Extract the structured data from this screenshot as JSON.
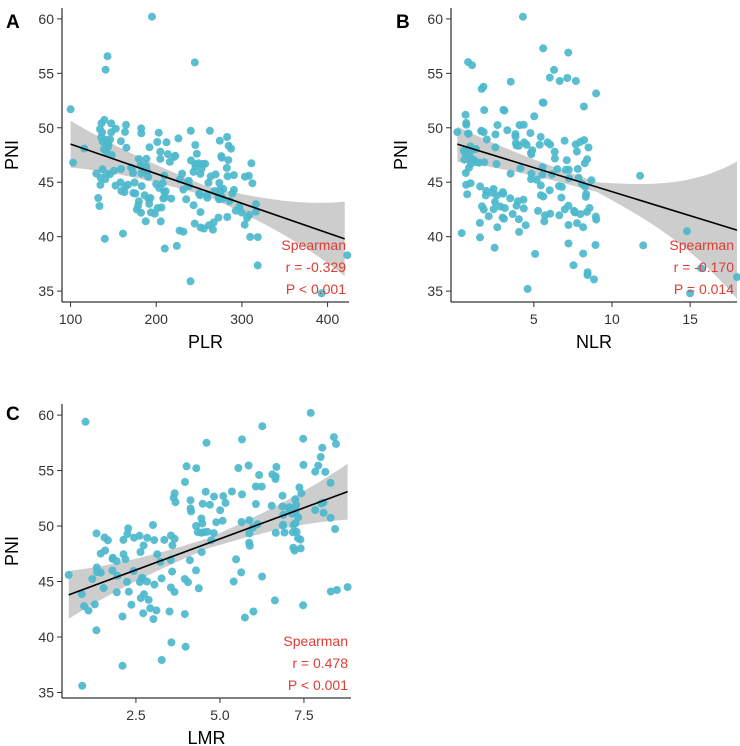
{
  "chart_data": [
    {
      "panel": "A",
      "type": "scatter",
      "xlabel": "PLR",
      "ylabel": "PNI",
      "xlim": [
        90,
        425
      ],
      "ylim": [
        34,
        61
      ],
      "xticks": [
        100,
        200,
        300,
        400
      ],
      "yticks": [
        35,
        40,
        45,
        50,
        55,
        60
      ],
      "point_color": "#4db8cc",
      "fit": {
        "x0": 100,
        "y0": 48.5,
        "x1": 420,
        "y1": 39.8,
        "ci_left": 1.2,
        "ci_mid": 0.45,
        "ci_right": 1.9
      },
      "stats": {
        "method": "Spearman",
        "r_text": "r = -0.329",
        "p_text": "P < 0.001",
        "color": "#e03c31"
      },
      "seed": 11,
      "outliers": [
        [
          195,
          60.2
        ],
        [
          245,
          56
        ],
        [
          100,
          51.7
        ],
        [
          103,
          46.8
        ],
        [
          393,
          34.8
        ],
        [
          423,
          38.3
        ],
        [
          240,
          35.9
        ],
        [
          140,
          39.8
        ],
        [
          116,
          48.1
        ]
      ],
      "clusters": [
        {
          "n": 170,
          "x": [
            130,
            320
          ],
          "ymean_at": [
            [
              100,
              48.5
            ],
            [
              420,
              39.8
            ]
          ],
          "ysd": 2.6
        }
      ]
    },
    {
      "panel": "B",
      "type": "scatter",
      "xlabel": "NLR",
      "ylabel": "PNI",
      "xlim": [
        -0.3,
        18
      ],
      "ylim": [
        34,
        61
      ],
      "xticks": [
        5,
        10,
        15
      ],
      "yticks": [
        35,
        40,
        45,
        50,
        55,
        60
      ],
      "point_color": "#4db8cc",
      "fit": {
        "x0": 0.1,
        "y0": 48.5,
        "x1": 18,
        "y1": 40.6,
        "ci_left": 0.9,
        "ci_mid": 0.45,
        "ci_right": 3.5
      },
      "stats": {
        "method": "Spearman",
        "r_text": "r = -0.170",
        "p_text": "P = 0.014",
        "color": "#e03c31"
      },
      "seed": 23,
      "outliers": [
        [
          4.3,
          60.2
        ],
        [
          5.6,
          57.3
        ],
        [
          7.2,
          56.9
        ],
        [
          4.6,
          35.2
        ],
        [
          11.8,
          45.6
        ],
        [
          12,
          39.2
        ],
        [
          14.8,
          40.5
        ],
        [
          15,
          34.8
        ],
        [
          15.7,
          37.1
        ],
        [
          18,
          36.3
        ],
        [
          0.1,
          49.6
        ]
      ],
      "clusters": [
        {
          "n": 160,
          "x": [
            0.3,
            9
          ],
          "ymean_at": [
            [
              0,
              48.5
            ],
            [
              18,
              40.6
            ]
          ],
          "ysd": 3.8
        }
      ]
    },
    {
      "panel": "C",
      "type": "scatter",
      "xlabel": "LMR",
      "ylabel": "PNI",
      "xlim": [
        0.3,
        8.9
      ],
      "ylim": [
        34.5,
        61
      ],
      "xticks": [
        2.5,
        5.0,
        7.5
      ],
      "xtick_labels": [
        "2.5",
        "5.0",
        "7.5"
      ],
      "yticks": [
        35,
        40,
        45,
        50,
        55,
        60
      ],
      "point_color": "#4db8cc",
      "fit": {
        "x0": 0.5,
        "y0": 43.8,
        "x1": 8.8,
        "y1": 53.1,
        "ci_left": 1.2,
        "ci_mid": 0.45,
        "ci_right": 1.4
      },
      "stats": {
        "method": "Spearman",
        "r_text": "r = 0.478",
        "p_text": "P < 0.001",
        "color": "#e03c31"
      },
      "seed": 37,
      "outliers": [
        [
          1.0,
          59.4
        ],
        [
          0.9,
          35.6
        ],
        [
          7.7,
          60.2
        ],
        [
          8.8,
          44.5
        ],
        [
          8.3,
          44.1
        ],
        [
          0.5,
          45.6
        ],
        [
          6.0,
          42.3
        ],
        [
          2.1,
          37.4
        ],
        [
          4.6,
          57.5
        ]
      ],
      "clusters": [
        {
          "n": 170,
          "x": [
            0.8,
            8.5
          ],
          "ymean_at": [
            [
              0.5,
              43.8
            ],
            [
              8.8,
              53.1
            ]
          ],
          "ysd": 3.6
        }
      ]
    }
  ]
}
